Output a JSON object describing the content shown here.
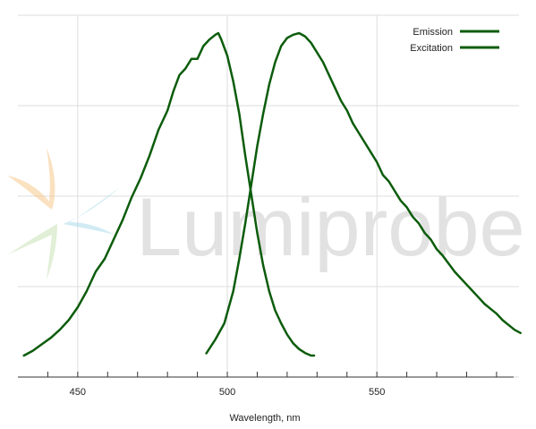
{
  "colors": {
    "series": "#0c5c0c",
    "grid": "#dddddd",
    "axis": "#333333"
  },
  "watermark": {
    "text": "Lumiprobe"
  },
  "chart_data": {
    "type": "line",
    "title": "",
    "xlabel": "Wavelength, nm",
    "ylabel": "",
    "xlim": [
      430,
      599
    ],
    "ylim": [
      0,
      1
    ],
    "x_ticks": [
      450,
      500,
      550
    ],
    "x_minor_ticks": [
      440,
      460,
      470,
      480,
      490,
      510,
      520,
      530,
      540,
      560,
      570,
      580,
      590
    ],
    "y_grid": [
      0,
      0.25,
      0.5,
      0.75,
      1.0
    ],
    "grid": true,
    "legend_position": "top-right",
    "series": [
      {
        "name": "Emission",
        "x": [
          493,
          496,
          499,
          502,
          504,
          506,
          508,
          510,
          512,
          514,
          516,
          518,
          520,
          522,
          524,
          526,
          528,
          530,
          532,
          534,
          536,
          538,
          540,
          542,
          544,
          546,
          548,
          550,
          552,
          554,
          556,
          558,
          560,
          562,
          564,
          566,
          568,
          570,
          572,
          574,
          576,
          578,
          580,
          582,
          584,
          586,
          588,
          590,
          592,
          594,
          596,
          598
        ],
        "y": [
          0.007,
          0.05,
          0.1,
          0.2,
          0.3,
          0.41,
          0.53,
          0.65,
          0.75,
          0.84,
          0.91,
          0.96,
          0.985,
          0.995,
          1.0,
          0.99,
          0.97,
          0.94,
          0.91,
          0.87,
          0.83,
          0.79,
          0.76,
          0.72,
          0.69,
          0.66,
          0.63,
          0.6,
          0.56,
          0.54,
          0.51,
          0.48,
          0.46,
          0.43,
          0.41,
          0.38,
          0.36,
          0.33,
          0.31,
          0.285,
          0.26,
          0.24,
          0.22,
          0.2,
          0.18,
          0.16,
          0.145,
          0.13,
          0.11,
          0.095,
          0.08,
          0.07
        ]
      },
      {
        "name": "Excitation",
        "x": [
          432,
          435,
          438,
          441,
          444,
          447,
          450,
          453,
          456,
          459,
          462,
          465,
          468,
          471,
          474,
          477,
          480,
          482,
          484,
          486,
          488,
          490,
          492,
          494,
          496,
          497,
          498,
          500,
          502,
          504,
          506,
          508,
          510,
          512,
          514,
          516,
          518,
          520,
          522,
          524,
          526,
          528,
          529
        ],
        "y": [
          0.0,
          0.015,
          0.035,
          0.055,
          0.08,
          0.11,
          0.15,
          0.2,
          0.26,
          0.3,
          0.36,
          0.42,
          0.49,
          0.55,
          0.62,
          0.7,
          0.76,
          0.82,
          0.87,
          0.89,
          0.92,
          0.92,
          0.96,
          0.98,
          0.995,
          1.0,
          0.98,
          0.93,
          0.85,
          0.75,
          0.62,
          0.5,
          0.38,
          0.28,
          0.2,
          0.14,
          0.1,
          0.065,
          0.038,
          0.02,
          0.008,
          0.0,
          0.0
        ]
      }
    ]
  }
}
